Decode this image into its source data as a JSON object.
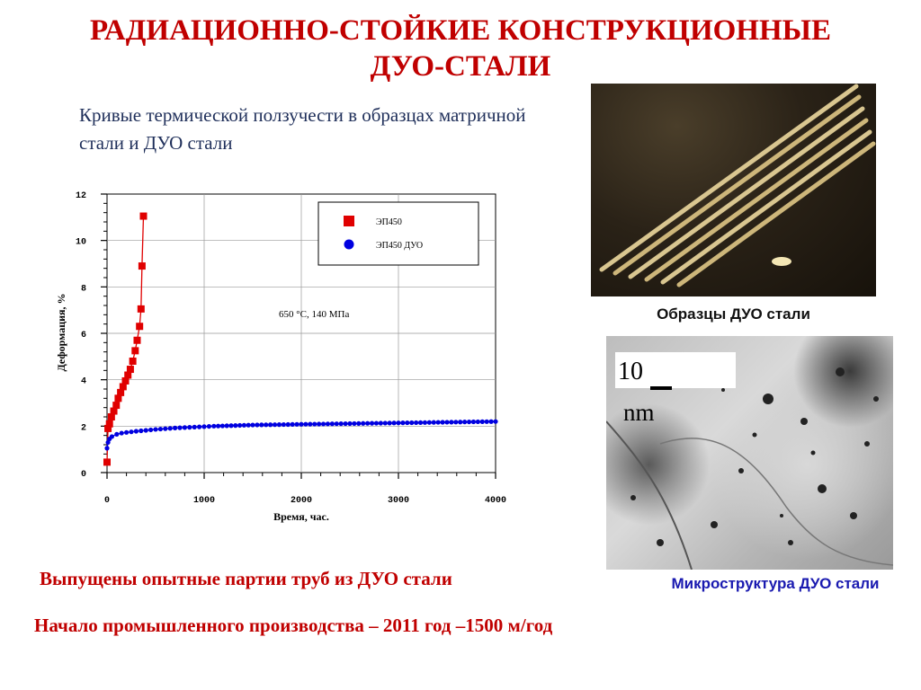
{
  "slide": {
    "title_line1": "РАДИАЦИОННО-СТОЙКИЕ КОНСТРУКЦИОННЫЕ",
    "title_line2": "ДУО-СТАЛИ",
    "subtitle": "Кривые термической ползучести в образцах матричной стали и ДУО стали",
    "photo1_caption": "Образцы ДУО стали",
    "photo2_caption": "Микроструктура ДУО стали",
    "scale_value": "10",
    "scale_unit": "nm",
    "note1": "Выпущены опытные партии труб из ДУО стали",
    "note2": "Начало промышленного производства – 2011 год –1500 м/год"
  },
  "colors": {
    "title": "#c00000",
    "subtitle": "#1f2f5a",
    "series_ep450": "#e00000",
    "series_ep450_duo": "#0000e0",
    "caption_micro": "#1a1ab0"
  },
  "chart_data": {
    "type": "scatter",
    "xlabel": "Время, час.",
    "ylabel": "Деформация, %",
    "annotation": "650 °С, 140 МПа",
    "xlim": [
      0,
      4000
    ],
    "ylim": [
      0,
      12
    ],
    "xticks": [
      0,
      1000,
      2000,
      3000,
      4000
    ],
    "yticks": [
      0,
      2,
      4,
      6,
      8,
      10,
      12
    ],
    "grid": true,
    "legend_position": "top-right",
    "series": [
      {
        "name": "ЭП450",
        "marker": "square",
        "color": "#e00000",
        "x": [
          0,
          10,
          25,
          45,
          70,
          95,
          115,
          140,
          165,
          190,
          215,
          240,
          265,
          290,
          310,
          335,
          350,
          360,
          375
        ],
        "y": [
          0.45,
          1.9,
          2.1,
          2.4,
          2.65,
          2.9,
          3.2,
          3.45,
          3.7,
          3.95,
          4.2,
          4.45,
          4.8,
          5.25,
          5.7,
          6.3,
          7.05,
          8.9,
          11.05
        ]
      },
      {
        "name": "ЭП450 ДУО",
        "marker": "circle",
        "color": "#0000e0",
        "x": [
          0,
          10,
          25,
          50,
          100,
          150,
          200,
          300,
          400,
          500,
          700,
          900,
          1100,
          1500,
          2000,
          2500,
          3000,
          3500,
          4000
        ],
        "y": [
          1.05,
          1.3,
          1.45,
          1.55,
          1.65,
          1.7,
          1.73,
          1.78,
          1.82,
          1.86,
          1.92,
          1.96,
          2.0,
          2.05,
          2.08,
          2.11,
          2.14,
          2.17,
          2.2
        ]
      }
    ]
  }
}
